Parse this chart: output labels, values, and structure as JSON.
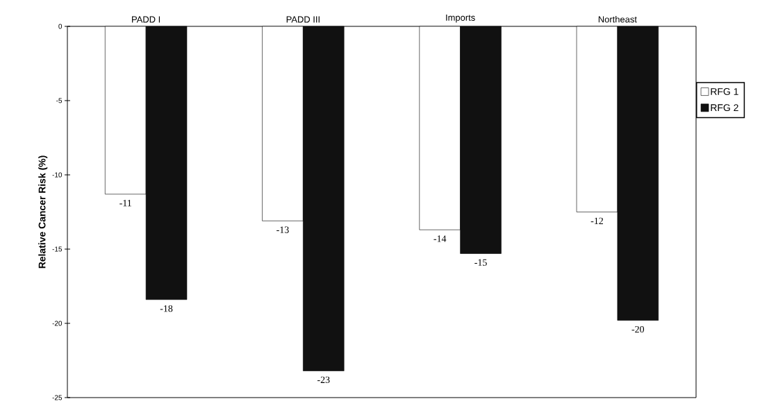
{
  "chart_data": {
    "type": "bar",
    "ylabel": "Relative Cancer Risk (%)",
    "categories": [
      "PADD I",
      "PADD III",
      "Imports",
      "Northeast"
    ],
    "series": [
      {
        "name": "RFG 1",
        "color": "#ffffff",
        "values": [
          -11.3,
          -13.1,
          -13.7,
          -12.5
        ],
        "value_labels": [
          "-11",
          "-13",
          "-14",
          "-12"
        ]
      },
      {
        "name": "RFG 2",
        "color": "#111111",
        "values": [
          -18.4,
          -23.2,
          -15.3,
          -19.8
        ],
        "value_labels": [
          "-18",
          "-23",
          "-15",
          "-20"
        ]
      }
    ],
    "ylim": [
      -25,
      0
    ],
    "yticks": [
      0,
      -5,
      -10,
      -15,
      -20,
      -25
    ],
    "grid": false,
    "legend": "right"
  }
}
